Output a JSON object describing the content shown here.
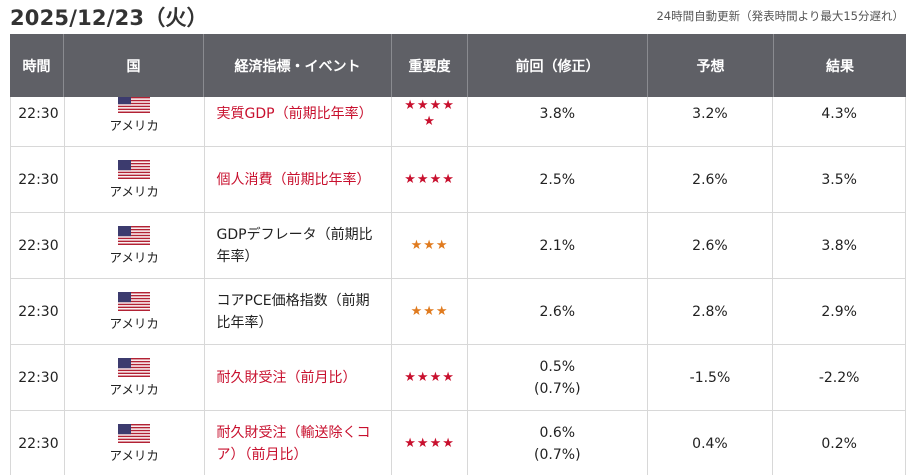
{
  "header": {
    "date": "2025/12/23（火）",
    "note": "24時間自動更新（発表時間より最大15分遅れ）"
  },
  "columns": {
    "time": "時間",
    "country": "国",
    "event": "経済指標・イベント",
    "importance": "重要度",
    "previous": "前回（修正）",
    "forecast": "予想",
    "result": "結果"
  },
  "colors": {
    "header_bg": "#5f6066",
    "event_highlight": "#c8102e",
    "star_high": "#c8102e",
    "star_mid": "#e07b1f"
  },
  "rows": [
    {
      "time": "22:30",
      "flag": "us-flag-icon",
      "country": "アメリカ",
      "event": "実質GDP（前期比年率）",
      "highlight": true,
      "stars": "★★★★★",
      "star_level": 5,
      "previous": "3.8%",
      "revised": "",
      "forecast": "3.2%",
      "result": "4.3%"
    },
    {
      "time": "22:30",
      "flag": "us-flag-icon",
      "country": "アメリカ",
      "event": "個人消費（前期比年率）",
      "highlight": true,
      "stars": "★★★★",
      "star_level": 4,
      "previous": "2.5%",
      "revised": "",
      "forecast": "2.6%",
      "result": "3.5%"
    },
    {
      "time": "22:30",
      "flag": "us-flag-icon",
      "country": "アメリカ",
      "event": "GDPデフレータ（前期比年率）",
      "highlight": false,
      "stars": "★★★",
      "star_level": 3,
      "previous": "2.1%",
      "revised": "",
      "forecast": "2.6%",
      "result": "3.8%"
    },
    {
      "time": "22:30",
      "flag": "us-flag-icon",
      "country": "アメリカ",
      "event": "コアPCE価格指数（前期比年率）",
      "highlight": false,
      "stars": "★★★",
      "star_level": 3,
      "previous": "2.6%",
      "revised": "",
      "forecast": "2.8%",
      "result": "2.9%"
    },
    {
      "time": "22:30",
      "flag": "us-flag-icon",
      "country": "アメリカ",
      "event": "耐久財受注（前月比）",
      "highlight": true,
      "stars": "★★★★",
      "star_level": 4,
      "previous": "0.5%",
      "revised": "(0.7%)",
      "forecast": "-1.5%",
      "result": "-2.2%"
    },
    {
      "time": "22:30",
      "flag": "us-flag-icon",
      "country": "アメリカ",
      "event": "耐久財受注（輸送除くコア）（前月比）",
      "highlight": true,
      "stars": "★★★★",
      "star_level": 4,
      "previous": "0.6%",
      "revised": "(0.7%)",
      "forecast": "0.4%",
      "result": "0.2%"
    }
  ]
}
